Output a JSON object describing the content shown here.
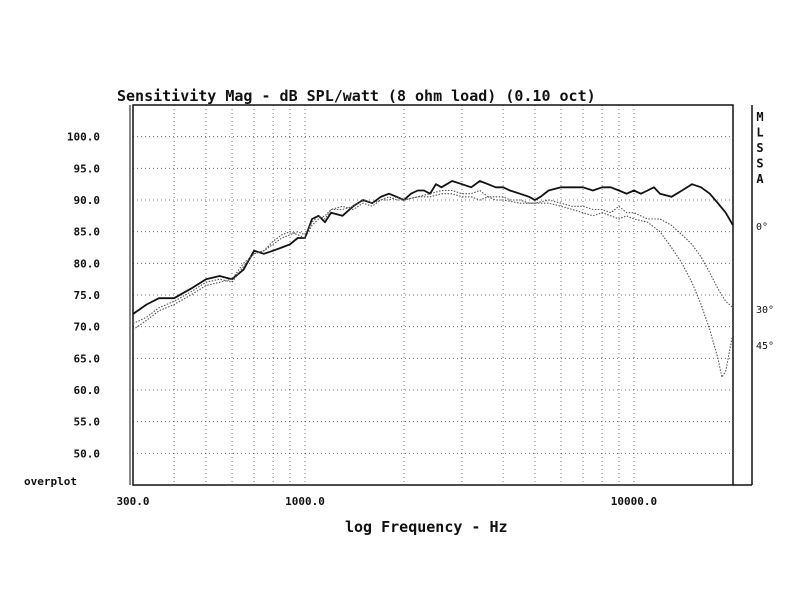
{
  "chart_data": {
    "type": "line",
    "title": "Sensitivity Mag - dB SPL/watt (8 ohm load) (0.10 oct)",
    "xlabel": "log Frequency - Hz",
    "ylabel": "",
    "x_scale": "log",
    "xlim": [
      300,
      20000
    ],
    "ylim": [
      45,
      105
    ],
    "x_tick_labels": [
      "300.0",
      "1000.0",
      "10000.0"
    ],
    "y_tick_labels": [
      "100.0",
      "95.0",
      "90.0",
      "85.0",
      "80.0",
      "75.0",
      "70.0",
      "65.0",
      "60.0",
      "55.0",
      "50.0"
    ],
    "grid": true,
    "legend_placement": "right",
    "corner_label": "overplot",
    "side_letters": [
      "M",
      "L",
      "S",
      "S",
      "A"
    ],
    "series": [
      {
        "name": "0°",
        "line_color": "#111111",
        "line_style": "solid",
        "x": [
          300,
          330,
          360,
          400,
          450,
          500,
          550,
          600,
          650,
          700,
          750,
          800,
          850,
          900,
          950,
          1000,
          1050,
          1100,
          1150,
          1200,
          1300,
          1400,
          1500,
          1600,
          1700,
          1800,
          1900,
          2000,
          2100,
          2200,
          2300,
          2400,
          2500,
          2600,
          2800,
          3000,
          3200,
          3400,
          3600,
          3800,
          4000,
          4200,
          4500,
          4800,
          5000,
          5200,
          5500,
          6000,
          6500,
          7000,
          7500,
          8000,
          8500,
          9000,
          9500,
          10000,
          10500,
          11000,
          11500,
          12000,
          13000,
          14000,
          15000,
          16000,
          17000,
          18000,
          19000,
          20000
        ],
        "y": [
          72.0,
          73.5,
          74.5,
          74.5,
          76.0,
          77.5,
          78.0,
          77.5,
          79.0,
          82.0,
          81.5,
          82.0,
          82.5,
          83.0,
          84.0,
          84.0,
          87.0,
          87.5,
          86.5,
          88.0,
          87.5,
          89.0,
          90.0,
          89.5,
          90.5,
          91.0,
          90.5,
          90.0,
          91.0,
          91.5,
          91.5,
          91.0,
          92.5,
          92.0,
          93.0,
          92.5,
          92.0,
          93.0,
          92.5,
          92.0,
          92.0,
          91.5,
          91.0,
          90.5,
          90.0,
          90.5,
          91.5,
          92.0,
          92.0,
          92.0,
          91.5,
          92.0,
          92.0,
          91.5,
          91.0,
          91.5,
          91.0,
          91.5,
          92.0,
          91.0,
          90.5,
          91.5,
          92.5,
          92.0,
          91.0,
          89.5,
          88.0,
          86.0
        ]
      },
      {
        "name": "30°",
        "line_color": "#555555",
        "line_style": "dotted",
        "x": [
          300,
          330,
          360,
          400,
          450,
          500,
          550,
          600,
          650,
          700,
          750,
          800,
          850,
          900,
          950,
          1000,
          1050,
          1100,
          1150,
          1200,
          1300,
          1400,
          1500,
          1600,
          1700,
          1800,
          1900,
          2000,
          2200,
          2400,
          2600,
          2800,
          3000,
          3200,
          3400,
          3600,
          3800,
          4000,
          4200,
          4500,
          4800,
          5000,
          5500,
          6000,
          6500,
          7000,
          7500,
          8000,
          8500,
          9000,
          9500,
          10000,
          11000,
          12000,
          13000,
          14000,
          15000,
          16000,
          17000,
          18000,
          19000,
          20000
        ],
        "y": [
          70.5,
          71.5,
          73.0,
          74.0,
          75.5,
          77.0,
          77.5,
          77.0,
          79.5,
          81.5,
          82.0,
          83.0,
          84.0,
          84.5,
          85.0,
          84.5,
          86.5,
          87.5,
          87.0,
          88.5,
          88.5,
          89.0,
          90.0,
          89.5,
          90.0,
          90.5,
          90.0,
          90.0,
          90.5,
          91.0,
          91.5,
          91.5,
          91.0,
          91.0,
          91.5,
          90.5,
          90.5,
          90.5,
          90.0,
          90.0,
          89.5,
          89.5,
          90.0,
          89.5,
          89.0,
          89.0,
          88.5,
          88.5,
          88.0,
          89.0,
          88.0,
          88.0,
          87.0,
          87.0,
          86.0,
          84.5,
          83.0,
          81.0,
          78.5,
          76.0,
          74.0,
          73.0
        ]
      },
      {
        "name": "45°",
        "line_color": "#555555",
        "line_style": "dotted",
        "x": [
          300,
          330,
          360,
          400,
          450,
          500,
          550,
          600,
          650,
          700,
          750,
          800,
          850,
          900,
          950,
          1000,
          1050,
          1100,
          1150,
          1200,
          1300,
          1400,
          1500,
          1600,
          1700,
          1800,
          1900,
          2000,
          2200,
          2400,
          2600,
          2800,
          3000,
          3200,
          3400,
          3600,
          3800,
          4000,
          4500,
          5000,
          5500,
          6000,
          6500,
          7000,
          7500,
          8000,
          8500,
          9000,
          9500,
          10000,
          11000,
          12000,
          13000,
          14000,
          15000,
          16000,
          17000,
          18000,
          18500,
          19000,
          19500,
          20000
        ],
        "y": [
          69.5,
          71.0,
          72.5,
          73.5,
          75.0,
          76.5,
          77.0,
          77.5,
          80.0,
          81.5,
          82.0,
          83.5,
          84.5,
          85.0,
          84.5,
          84.0,
          86.0,
          87.0,
          87.5,
          88.5,
          89.0,
          88.5,
          89.5,
          89.0,
          90.0,
          90.0,
          90.5,
          90.0,
          90.5,
          90.5,
          91.0,
          91.0,
          90.5,
          90.5,
          90.0,
          90.5,
          90.0,
          90.0,
          89.5,
          89.5,
          89.5,
          89.0,
          88.5,
          88.0,
          87.5,
          88.0,
          87.5,
          87.0,
          87.5,
          87.0,
          86.5,
          85.0,
          82.5,
          80.0,
          77.0,
          73.5,
          69.5,
          65.0,
          62.0,
          63.0,
          66.0,
          69.0
        ]
      }
    ]
  }
}
